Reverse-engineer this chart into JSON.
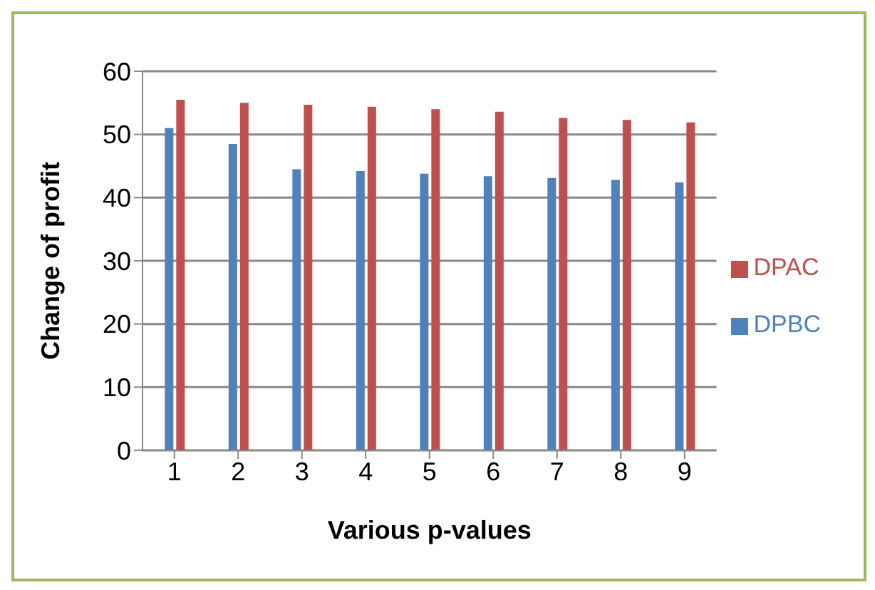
{
  "chart_data": {
    "type": "bar",
    "xlabel": "Various p-values",
    "ylabel": "Change of profit",
    "categories": [
      "1",
      "2",
      "3",
      "4",
      "5",
      "6",
      "7",
      "8",
      "9"
    ],
    "series": [
      {
        "name": "DPBC",
        "color": "#4f81bd",
        "values": [
          51,
          48.5,
          44.5,
          44.2,
          43.8,
          43.4,
          43.1,
          42.8,
          42.4
        ]
      },
      {
        "name": "DPAC",
        "color": "#c0504d",
        "values": [
          55.5,
          55,
          54.7,
          54.4,
          54,
          53.6,
          52.6,
          52.3,
          51.9
        ]
      }
    ],
    "ylim": [
      0,
      60
    ],
    "yticks": [
      0,
      10,
      20,
      30,
      40,
      50,
      60
    ],
    "grid": "y",
    "legend": "right"
  }
}
